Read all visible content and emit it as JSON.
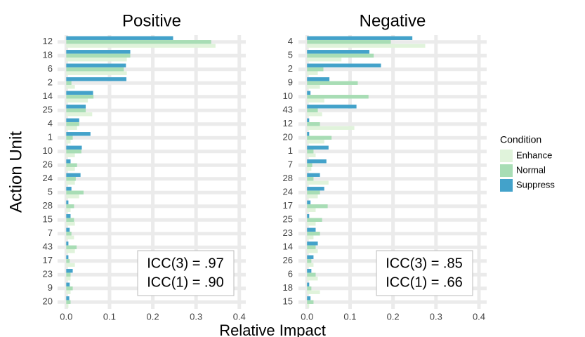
{
  "ylabel": "Action Unit",
  "xlabel": "Relative Impact",
  "legend_title": "Condition",
  "chart_data": [
    {
      "type": "bar",
      "orientation": "horizontal",
      "title": "Positive",
      "categories": [
        "12",
        "18",
        "6",
        "2",
        "14",
        "25",
        "4",
        "1",
        "10",
        "26",
        "24",
        "5",
        "28",
        "15",
        "7",
        "43",
        "17",
        "23",
        "9",
        "20"
      ],
      "series": [
        {
          "name": "Enhance",
          "color": "#e0f3db",
          "values": [
            0.345,
            0.14,
            0.14,
            0.02,
            0.05,
            0.06,
            0.025,
            0.01,
            0.02,
            0.02,
            0.02,
            0.03,
            0.01,
            0.02,
            0.018,
            0.02,
            0.02,
            0.01,
            0.01,
            0.005
          ]
        },
        {
          "name": "Normal",
          "color": "#a8ddb5",
          "values": [
            0.335,
            0.148,
            0.133,
            0.012,
            0.063,
            0.045,
            0.03,
            0.015,
            0.035,
            0.025,
            0.022,
            0.04,
            0.018,
            0.018,
            0.012,
            0.024,
            0.008,
            0.01,
            0.015,
            0.01
          ]
        },
        {
          "name": "Suppress",
          "color": "#43a2ca",
          "values": [
            0.247,
            0.148,
            0.138,
            0.139,
            0.062,
            0.045,
            0.03,
            0.056,
            0.036,
            0.01,
            0.033,
            0.012,
            0.005,
            0.01,
            0.008,
            0.005,
            0.005,
            0.015,
            0.008,
            0.007
          ]
        }
      ],
      "xlim": [
        -0.02,
        0.415
      ],
      "xticks": [
        {
          "value": 0,
          "label": "0.0"
        },
        0.1,
        0.2,
        0.3,
        0.4
      ],
      "grid": true,
      "annotations": [
        "ICC(3) = .97",
        "ICC(1) = .90"
      ]
    },
    {
      "type": "bar",
      "orientation": "horizontal",
      "title": "Negative",
      "categories": [
        "4",
        "5",
        "2",
        "9",
        "10",
        "43",
        "12",
        "20",
        "1",
        "7",
        "28",
        "24",
        "17",
        "25",
        "23",
        "14",
        "26",
        "6",
        "18",
        "15"
      ],
      "series": [
        {
          "name": "Enhance",
          "color": "#e0f3db",
          "values": [
            0.275,
            0.08,
            0.025,
            0.03,
            0.04,
            0.035,
            0.11,
            0.04,
            0.02,
            0.01,
            0.05,
            0.025,
            0.02,
            0.02,
            0.015,
            0.025,
            0.015,
            0.025,
            0.03,
            0.005
          ]
        },
        {
          "name": "Normal",
          "color": "#a8ddb5",
          "values": [
            0.195,
            0.155,
            0.038,
            0.118,
            0.143,
            0.025,
            0.03,
            0.057,
            0.015,
            0.012,
            0.015,
            0.03,
            0.048,
            0.035,
            0.03,
            0.02,
            0.01,
            0.02,
            0.01,
            0.015
          ]
        },
        {
          "name": "Suppress",
          "color": "#43a2ca",
          "values": [
            0.245,
            0.145,
            0.172,
            0.052,
            0.008,
            0.115,
            0.005,
            0.005,
            0.05,
            0.045,
            0.03,
            0.04,
            0.008,
            0.005,
            0.02,
            0.025,
            0.015,
            0.01,
            0.005,
            0.008
          ]
        }
      ],
      "xlim": [
        -0.02,
        0.418
      ],
      "xticks": [
        {
          "value": 0,
          "label": "0.0"
        },
        0.1,
        0.2,
        0.3,
        0.4
      ],
      "grid": true,
      "annotations": [
        "ICC(3) = .85",
        "ICC(1) = .66"
      ]
    }
  ]
}
